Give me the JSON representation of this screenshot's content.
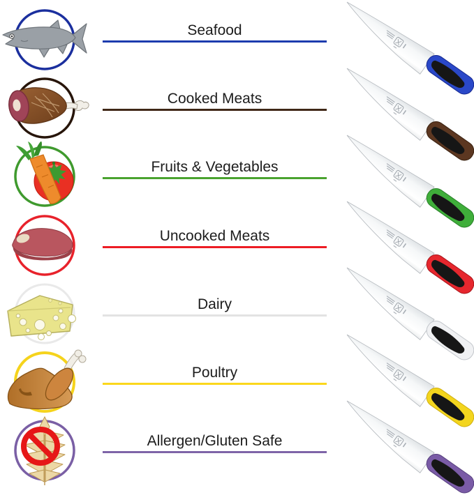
{
  "categories": [
    {
      "label": "Seafood",
      "line_color": "#1d3cae",
      "circle_color": "#1b2f9e",
      "icon": "fish-icon",
      "knife_handle_color": "#2a48c8",
      "knife_handle_shadow": "#16288f"
    },
    {
      "label": "Cooked Meats",
      "line_color": "#402817",
      "circle_color": "#27150a",
      "icon": "ham-icon",
      "knife_handle_color": "#5c3721",
      "knife_handle_shadow": "#38200f"
    },
    {
      "label": "Fruits & Vegetables",
      "line_color": "#4aa32f",
      "circle_color": "#3f9a2e",
      "icon": "produce-icon",
      "knife_handle_color": "#3fae3a",
      "knife_handle_shadow": "#287f27"
    },
    {
      "label": "Uncooked Meats",
      "line_color": "#ed1c24",
      "circle_color": "#e8222b",
      "icon": "raw-meat-icon",
      "knife_handle_color": "#e6272e",
      "knife_handle_shadow": "#a8141a"
    },
    {
      "label": "Dairy",
      "line_color": "#e3e3e3",
      "circle_color": "#e9e9e9",
      "icon": "cheese-icon",
      "knife_handle_color": "#f0f1f3",
      "knife_handle_shadow": "#c2c6cb"
    },
    {
      "label": "Poultry",
      "line_color": "#fbd71c",
      "circle_color": "#f5d31c",
      "icon": "turkey-icon",
      "knife_handle_color": "#f3d51e",
      "knife_handle_shadow": "#cfae0e"
    },
    {
      "label": "Allergen/Gluten Safe",
      "line_color": "#7e64a8",
      "circle_color": "#7a5fa5",
      "icon": "wheat-banned-icon",
      "knife_handle_color": "#7a5ba6",
      "knife_handle_shadow": "#57407e"
    }
  ]
}
